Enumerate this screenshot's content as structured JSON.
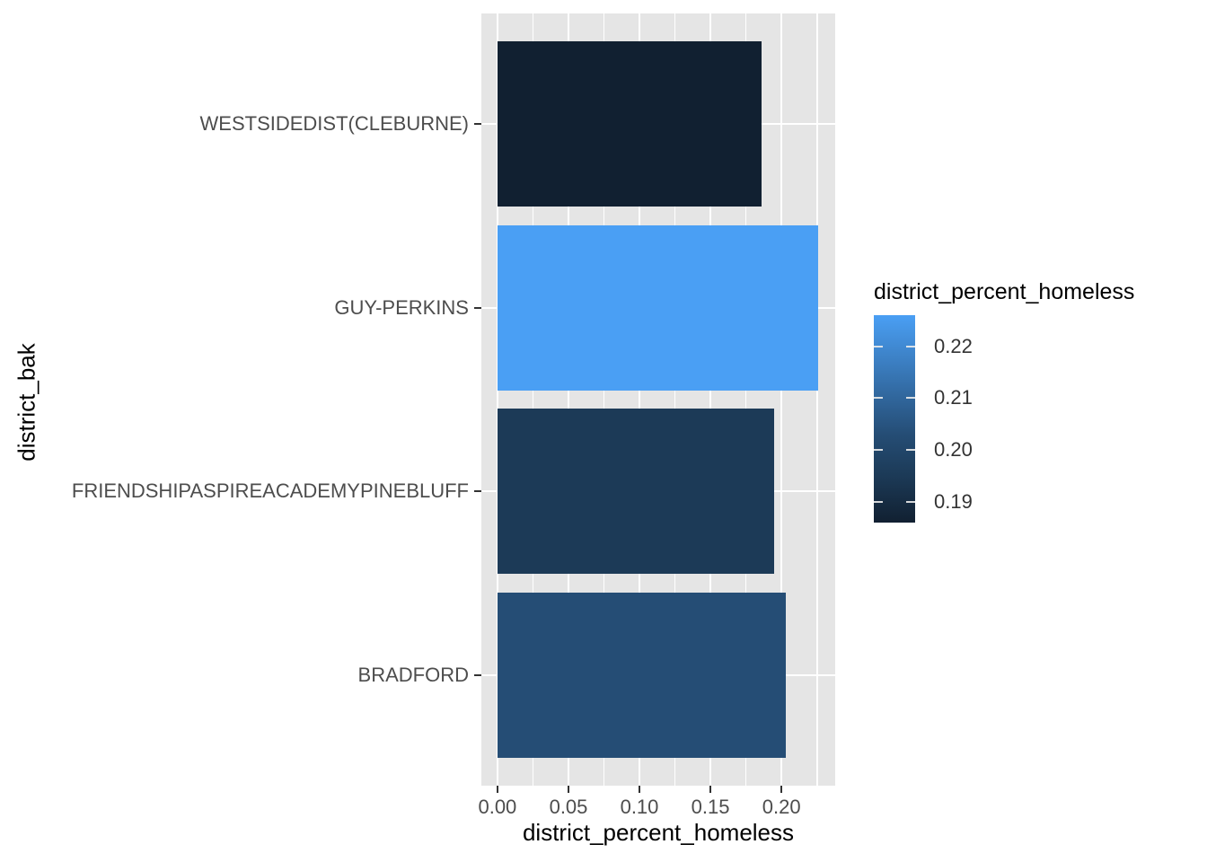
{
  "chart_data": {
    "type": "bar",
    "orientation": "horizontal",
    "xlabel": "district_percent_homeless",
    "ylabel": "district_bak",
    "categories": [
      "WESTSIDEDIST(CLEBURNE)",
      "GUY-PERKINS",
      "FRIENDSHIPASPIREACADEMYPINEBLUFF",
      "BRADFORD"
    ],
    "values": [
      0.186,
      0.226,
      0.195,
      0.203
    ],
    "bar_colors": [
      "#112031",
      "#4A9FF4",
      "#1C3A57",
      "#254D75"
    ],
    "x_tick_labels": [
      "0.00",
      "0.05",
      "0.10",
      "0.15",
      "0.20"
    ],
    "x_tick_values": [
      0.0,
      0.05,
      0.1,
      0.15,
      0.2
    ],
    "x_minor_tick_values": [
      0.025,
      0.075,
      0.125,
      0.175,
      0.225
    ],
    "xlim": [
      -0.01133,
      0.23783
    ],
    "grid": true,
    "panel_bg": "#E5E5E5",
    "grid_color": "#FFFFFF",
    "tick_color": "#333333",
    "legend": {
      "title": "district_percent_homeless",
      "min": 0.186,
      "max": 0.226,
      "tick_labels": [
        "0.22",
        "0.21",
        "0.20",
        "0.19"
      ],
      "tick_values": [
        0.22,
        0.21,
        0.2,
        0.19
      ],
      "gradient_stops": [
        {
          "color": "#4A9FF4",
          "pos": 0
        },
        {
          "color": "#254D75",
          "pos": 0.575
        },
        {
          "color": "#1C3A57",
          "pos": 0.775
        },
        {
          "color": "#112031",
          "pos": 1
        }
      ]
    }
  }
}
